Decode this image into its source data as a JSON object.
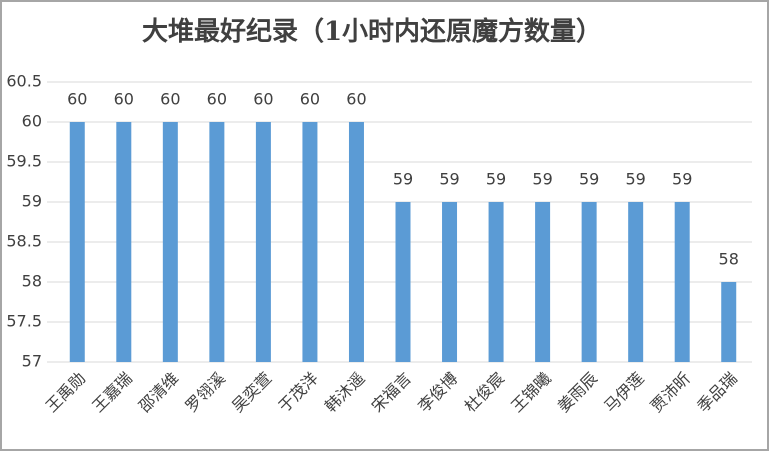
{
  "chart_data": {
    "type": "bar",
    "title": "大堆最好纪录（1小时内还原魔方数量）",
    "categories": [
      "王禹勋",
      "王嘉瑞",
      "邵清维",
      "罗翎溪",
      "吴奕萱",
      "于茂洋",
      "韩沐遥",
      "宋福言",
      "李俊博",
      "杜俊宸",
      "王锦曦",
      "姜雨辰",
      "马伊莲",
      "贾沛昕",
      "季品瑞"
    ],
    "values": [
      60,
      60,
      60,
      60,
      60,
      60,
      60,
      59,
      59,
      59,
      59,
      59,
      59,
      59,
      58
    ],
    "color": "#5b9bd5",
    "ylim": [
      57,
      60.5
    ],
    "yticks": [
      57,
      57.5,
      58,
      58.5,
      59,
      59.5,
      60,
      60.5
    ],
    "grid": true
  }
}
